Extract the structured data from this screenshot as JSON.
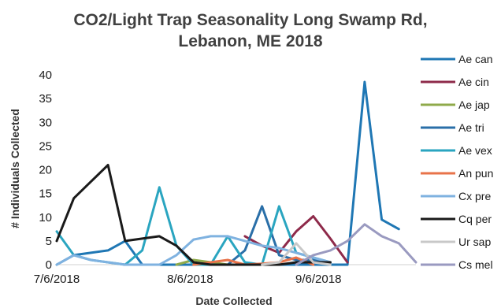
{
  "chart_data": {
    "type": "line",
    "title": [
      "CO2/Light Trap Seasonality Long Swamp Rd,",
      "Lebanon, ME 2018"
    ],
    "xlabel": "Date Collected",
    "ylabel": "# Individuals Collected",
    "ylim": [
      0,
      40
    ],
    "yticks": [
      "0",
      "5",
      "10",
      "15",
      "20",
      "25",
      "30",
      "35",
      "40"
    ],
    "xticks": [
      {
        "label": "7/6/2018",
        "x": 0
      },
      {
        "label": "8/6/2018",
        "x": 7.8
      },
      {
        "label": "9/6/2018",
        "x": 15.3
      }
    ],
    "xlim": [
      0,
      21
    ],
    "grid": false,
    "legend_position": "right",
    "series": [
      {
        "name": "Ae can",
        "color": "#1f77b4",
        "x": [
          0,
          1,
          2,
          3,
          4,
          5,
          6,
          7,
          8,
          9,
          10,
          11,
          12,
          13,
          14,
          15,
          16,
          17,
          18,
          19,
          20,
          21
        ],
        "values": [
          0,
          2,
          2.5,
          3,
          5,
          0,
          0,
          0,
          0,
          0,
          0,
          0,
          0,
          0,
          0,
          0,
          0,
          0,
          38.5,
          9.5,
          7.5,
          null
        ]
      },
      {
        "name": "Ae cin",
        "color": "#8e2a4a",
        "x": [
          11,
          12,
          13,
          14,
          15,
          16,
          17
        ],
        "values": [
          6,
          4,
          2.5,
          7,
          10.2,
          5.5,
          0.5
        ]
      },
      {
        "name": "Ae jap",
        "color": "#8faa4a",
        "x": [
          7,
          8,
          9,
          10
        ],
        "values": [
          0,
          1,
          0.5,
          0
        ]
      },
      {
        "name": "Ae tri",
        "color": "#2a6fa8",
        "x": [
          10,
          11,
          12,
          13,
          14,
          15,
          16
        ],
        "values": [
          0,
          3,
          12.3,
          2,
          1,
          1,
          0.5
        ]
      },
      {
        "name": "Ae vex",
        "color": "#2aa5c0",
        "x": [
          0,
          1,
          2,
          3,
          4,
          5,
          6,
          7,
          8,
          9,
          10,
          11,
          12,
          13,
          14,
          15,
          16
        ],
        "values": [
          7,
          2,
          1,
          0.5,
          0,
          3,
          16.3,
          4,
          0,
          0,
          6,
          0.5,
          0,
          12.3,
          2.5,
          1.5,
          0.5
        ]
      },
      {
        "name": "An pun",
        "color": "#e8734a",
        "x": [
          8,
          9,
          10,
          11,
          12,
          13,
          14,
          15
        ],
        "values": [
          0,
          0.5,
          1,
          0,
          0.2,
          0.5,
          1.5,
          0
        ]
      },
      {
        "name": "Cx pre",
        "color": "#7fb2e0",
        "x": [
          0,
          1,
          2,
          3,
          4,
          5,
          6,
          7,
          8,
          9,
          10,
          11,
          12,
          13,
          14,
          15,
          16
        ],
        "values": [
          0,
          2,
          1,
          0.5,
          0,
          0,
          0,
          2,
          5.3,
          6,
          6,
          5,
          4,
          3.5,
          2.5,
          1.5,
          0.5
        ]
      },
      {
        "name": "Cq per",
        "color": "#1a1a1a",
        "x": [
          0,
          1,
          2,
          3,
          4,
          5,
          6,
          7,
          8,
          9,
          10,
          11,
          12,
          13,
          14,
          15,
          16
        ],
        "values": [
          5,
          14,
          17.5,
          21,
          5,
          5.5,
          6,
          4,
          0.5,
          0,
          0,
          0,
          0,
          0,
          0.5,
          0.5,
          0.5
        ]
      },
      {
        "name": "Ur sap",
        "color": "#c8c8c8",
        "x": [
          12,
          13,
          14,
          15,
          16
        ],
        "values": [
          0,
          0.5,
          4.5,
          0.5,
          0
        ]
      },
      {
        "name": "Cs mel",
        "color": "#9a9ac0",
        "x": [
          14,
          15,
          16,
          17,
          18,
          19,
          20,
          21
        ],
        "values": [
          0,
          2,
          3,
          5,
          8.5,
          6,
          4.5,
          0.5
        ]
      }
    ]
  }
}
